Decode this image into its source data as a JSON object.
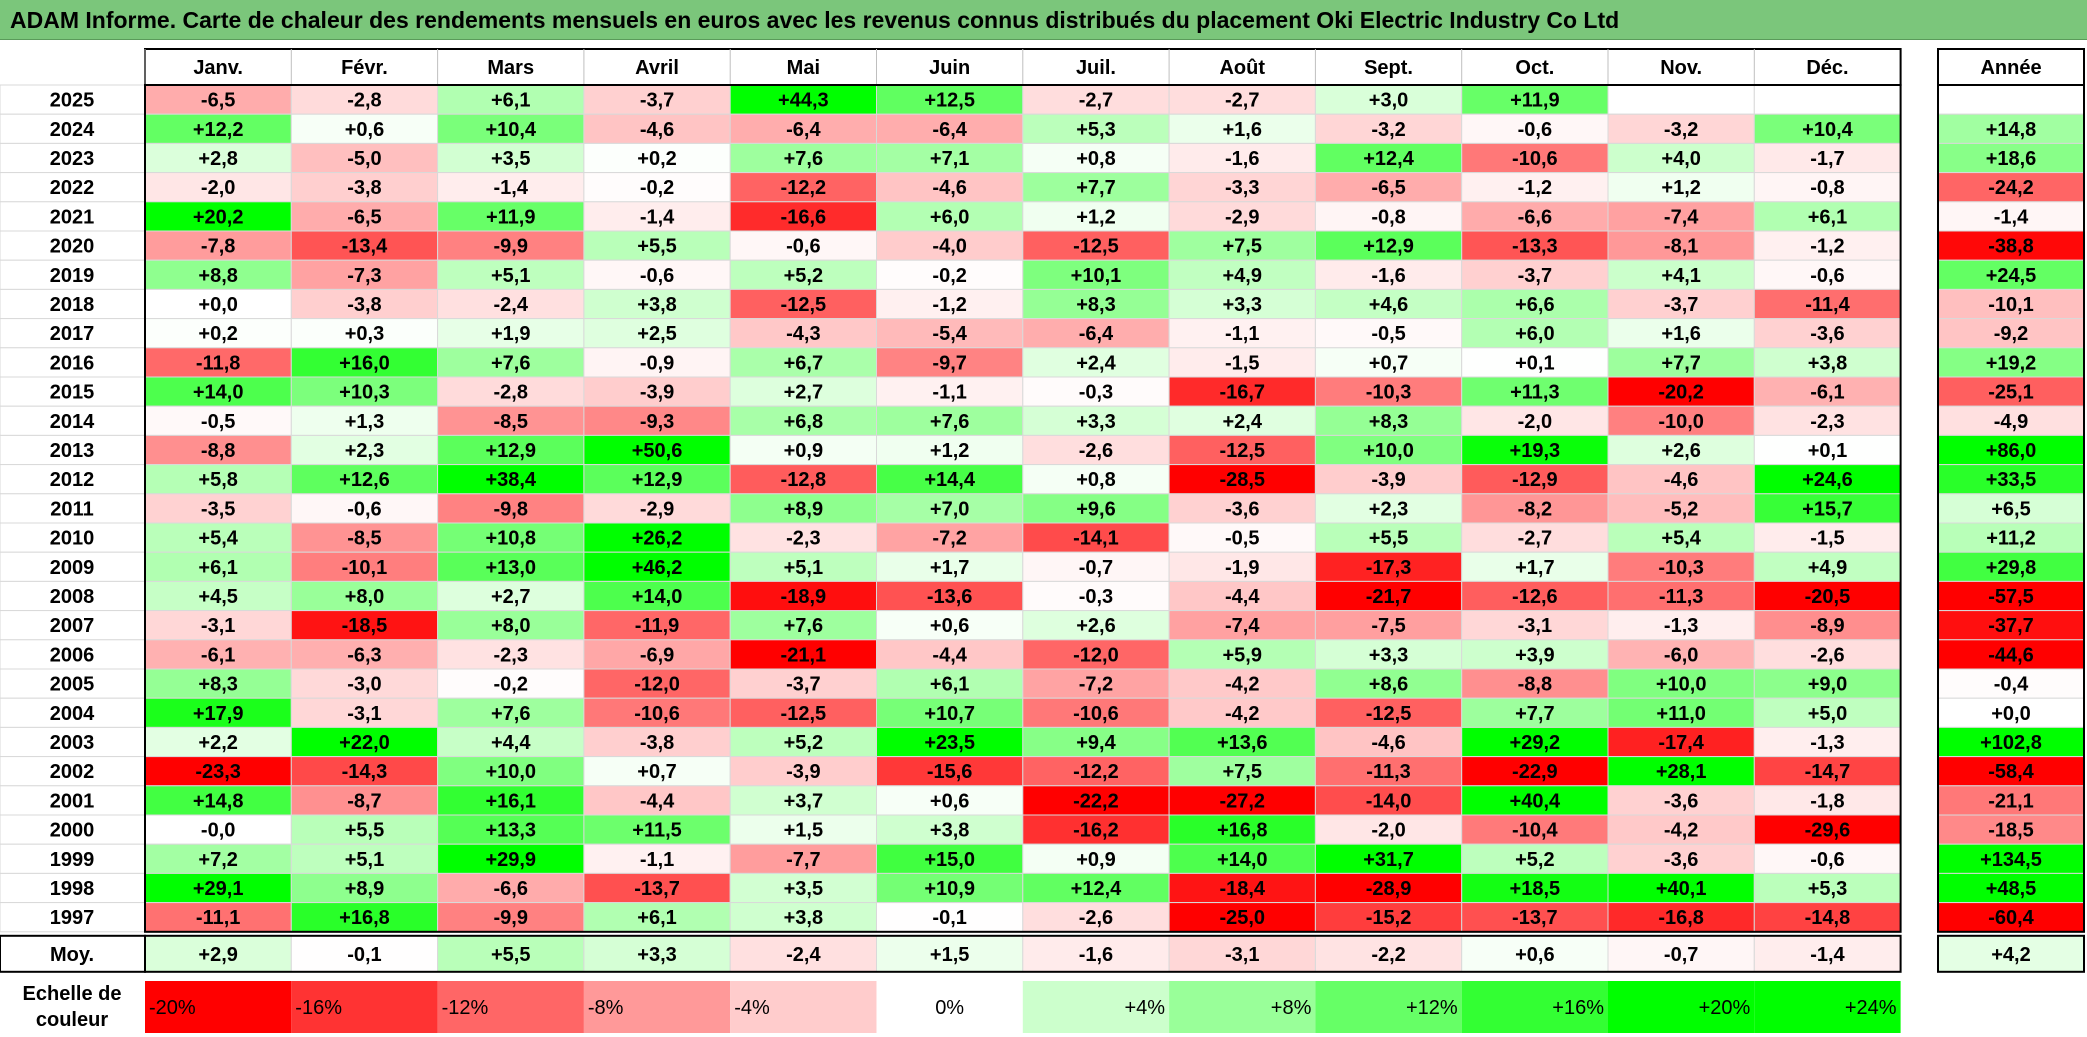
{
  "title": "ADAM Informe. Carte de chaleur des rendements mensuels en euros avec les revenus connus distribués du placement Oki Electric Industry Co Ltd",
  "chart_data": {
    "type": "heatmap",
    "title": "ADAM Informe. Carte de chaleur des rendements mensuels en euros avec les revenus connus distribués du placement Oki Electric Industry Co Ltd",
    "months": [
      "Janv.",
      "Févr.",
      "Mars",
      "Avril",
      "Mai",
      "Juin",
      "Juil.",
      "Août",
      "Sept.",
      "Oct.",
      "Nov.",
      "Déc."
    ],
    "annual_header": "Année",
    "average_label": "Moy.",
    "rows": [
      {
        "year": "2025",
        "values": [
          "-6,5",
          "-2,8",
          "+6,1",
          "-3,7",
          "+44,3",
          "+12,5",
          "-2,7",
          "-2,7",
          "+3,0",
          "+11,9",
          "",
          ""
        ],
        "annual": ""
      },
      {
        "year": "2024",
        "values": [
          "+12,2",
          "+0,6",
          "+10,4",
          "-4,6",
          "-6,4",
          "-6,4",
          "+5,3",
          "+1,6",
          "-3,2",
          "-0,6",
          "-3,2",
          "+10,4"
        ],
        "annual": "+14,8"
      },
      {
        "year": "2023",
        "values": [
          "+2,8",
          "-5,0",
          "+3,5",
          "+0,2",
          "+7,6",
          "+7,1",
          "+0,8",
          "-1,6",
          "+12,4",
          "-10,6",
          "+4,0",
          "-1,7"
        ],
        "annual": "+18,6"
      },
      {
        "year": "2022",
        "values": [
          "-2,0",
          "-3,8",
          "-1,4",
          "-0,2",
          "-12,2",
          "-4,6",
          "+7,7",
          "-3,3",
          "-6,5",
          "-1,2",
          "+1,2",
          "-0,8"
        ],
        "annual": "-24,2"
      },
      {
        "year": "2021",
        "values": [
          "+20,2",
          "-6,5",
          "+11,9",
          "-1,4",
          "-16,6",
          "+6,0",
          "+1,2",
          "-2,9",
          "-0,8",
          "-6,6",
          "-7,4",
          "+6,1"
        ],
        "annual": "-1,4"
      },
      {
        "year": "2020",
        "values": [
          "-7,8",
          "-13,4",
          "-9,9",
          "+5,5",
          "-0,6",
          "-4,0",
          "-12,5",
          "+7,5",
          "+12,9",
          "-13,3",
          "-8,1",
          "-1,2"
        ],
        "annual": "-38,8"
      },
      {
        "year": "2019",
        "values": [
          "+8,8",
          "-7,3",
          "+5,1",
          "-0,6",
          "+5,2",
          "-0,2",
          "+10,1",
          "+4,9",
          "-1,6",
          "-3,7",
          "+4,1",
          "-0,6"
        ],
        "annual": "+24,5"
      },
      {
        "year": "2018",
        "values": [
          "+0,0",
          "-3,8",
          "-2,4",
          "+3,8",
          "-12,5",
          "-1,2",
          "+8,3",
          "+3,3",
          "+4,6",
          "+6,6",
          "-3,7",
          "-11,4"
        ],
        "annual": "-10,1"
      },
      {
        "year": "2017",
        "values": [
          "+0,2",
          "+0,3",
          "+1,9",
          "+2,5",
          "-4,3",
          "-5,4",
          "-6,4",
          "-1,1",
          "-0,5",
          "+6,0",
          "+1,6",
          "-3,6"
        ],
        "annual": "-9,2"
      },
      {
        "year": "2016",
        "values": [
          "-11,8",
          "+16,0",
          "+7,6",
          "-0,9",
          "+6,7",
          "-9,7",
          "+2,4",
          "-1,5",
          "+0,7",
          "+0,1",
          "+7,7",
          "+3,8"
        ],
        "annual": "+19,2"
      },
      {
        "year": "2015",
        "values": [
          "+14,0",
          "+10,3",
          "-2,8",
          "-3,9",
          "+2,7",
          "-1,1",
          "-0,3",
          "-16,7",
          "-10,3",
          "+11,3",
          "-20,2",
          "-6,1"
        ],
        "annual": "-25,1"
      },
      {
        "year": "2014",
        "values": [
          "-0,5",
          "+1,3",
          "-8,5",
          "-9,3",
          "+6,8",
          "+7,6",
          "+3,3",
          "+2,4",
          "+8,3",
          "-2,0",
          "-10,0",
          "-2,3"
        ],
        "annual": "-4,9"
      },
      {
        "year": "2013",
        "values": [
          "-8,8",
          "+2,3",
          "+12,9",
          "+50,6",
          "+0,9",
          "+1,2",
          "-2,6",
          "-12,5",
          "+10,0",
          "+19,3",
          "+2,6",
          "+0,1"
        ],
        "annual": "+86,0"
      },
      {
        "year": "2012",
        "values": [
          "+5,8",
          "+12,6",
          "+38,4",
          "+12,9",
          "-12,8",
          "+14,4",
          "+0,8",
          "-28,5",
          "-3,9",
          "-12,9",
          "-4,6",
          "+24,6"
        ],
        "annual": "+33,5"
      },
      {
        "year": "2011",
        "values": [
          "-3,5",
          "-0,6",
          "-9,8",
          "-2,9",
          "+8,9",
          "+7,0",
          "+9,6",
          "-3,6",
          "+2,3",
          "-8,2",
          "-5,2",
          "+15,7"
        ],
        "annual": "+6,5"
      },
      {
        "year": "2010",
        "values": [
          "+5,4",
          "-8,5",
          "+10,8",
          "+26,2",
          "-2,3",
          "-7,2",
          "-14,1",
          "-0,5",
          "+5,5",
          "-2,7",
          "+5,4",
          "-1,5"
        ],
        "annual": "+11,2"
      },
      {
        "year": "2009",
        "values": [
          "+6,1",
          "-10,1",
          "+13,0",
          "+46,2",
          "+5,1",
          "+1,7",
          "-0,7",
          "-1,9",
          "-17,3",
          "+1,7",
          "-10,3",
          "+4,9"
        ],
        "annual": "+29,8"
      },
      {
        "year": "2008",
        "values": [
          "+4,5",
          "+8,0",
          "+2,7",
          "+14,0",
          "-18,9",
          "-13,6",
          "-0,3",
          "-4,4",
          "-21,7",
          "-12,6",
          "-11,3",
          "-20,5"
        ],
        "annual": "-57,5"
      },
      {
        "year": "2007",
        "values": [
          "-3,1",
          "-18,5",
          "+8,0",
          "-11,9",
          "+7,6",
          "+0,6",
          "+2,6",
          "-7,4",
          "-7,5",
          "-3,1",
          "-1,3",
          "-8,9"
        ],
        "annual": "-37,7"
      },
      {
        "year": "2006",
        "values": [
          "-6,1",
          "-6,3",
          "-2,3",
          "-6,9",
          "-21,1",
          "-4,4",
          "-12,0",
          "+5,9",
          "+3,3",
          "+3,9",
          "-6,0",
          "-2,6"
        ],
        "annual": "-44,6"
      },
      {
        "year": "2005",
        "values": [
          "+8,3",
          "-3,0",
          "-0,2",
          "-12,0",
          "-3,7",
          "+6,1",
          "-7,2",
          "-4,2",
          "+8,6",
          "-8,8",
          "+10,0",
          "+9,0"
        ],
        "annual": "-0,4"
      },
      {
        "year": "2004",
        "values": [
          "+17,9",
          "-3,1",
          "+7,6",
          "-10,6",
          "-12,5",
          "+10,7",
          "-10,6",
          "-4,2",
          "-12,5",
          "+7,7",
          "+11,0",
          "+5,0"
        ],
        "annual": "+0,0"
      },
      {
        "year": "2003",
        "values": [
          "+2,2",
          "+22,0",
          "+4,4",
          "-3,8",
          "+5,2",
          "+23,5",
          "+9,4",
          "+13,6",
          "-4,6",
          "+29,2",
          "-17,4",
          "-1,3"
        ],
        "annual": "+102,8"
      },
      {
        "year": "2002",
        "values": [
          "-23,3",
          "-14,3",
          "+10,0",
          "+0,7",
          "-3,9",
          "-15,6",
          "-12,2",
          "+7,5",
          "-11,3",
          "-22,9",
          "+28,1",
          "-14,7"
        ],
        "annual": "-58,4"
      },
      {
        "year": "2001",
        "values": [
          "+14,8",
          "-8,7",
          "+16,1",
          "-4,4",
          "+3,7",
          "+0,6",
          "-22,2",
          "-27,2",
          "-14,0",
          "+40,4",
          "-3,6",
          "-1,8"
        ],
        "annual": "-21,1"
      },
      {
        "year": "2000",
        "values": [
          "-0,0",
          "+5,5",
          "+13,3",
          "+11,5",
          "+1,5",
          "+3,8",
          "-16,2",
          "+16,8",
          "-2,0",
          "-10,4",
          "-4,2",
          "-29,6"
        ],
        "annual": "-18,5"
      },
      {
        "year": "1999",
        "values": [
          "+7,2",
          "+5,1",
          "+29,9",
          "-1,1",
          "-7,7",
          "+15,0",
          "+0,9",
          "+14,0",
          "+31,7",
          "+5,2",
          "-3,6",
          "-0,6"
        ],
        "annual": "+134,5"
      },
      {
        "year": "1998",
        "values": [
          "+29,1",
          "+8,9",
          "-6,6",
          "-13,7",
          "+3,5",
          "+10,9",
          "+12,4",
          "-18,4",
          "-28,9",
          "+18,5",
          "+40,1",
          "+5,3"
        ],
        "annual": "+48,5"
      },
      {
        "year": "1997",
        "values": [
          "-11,1",
          "+16,8",
          "-9,9",
          "+6,1",
          "+3,8",
          "-0,1",
          "-2,6",
          "-25,0",
          "-15,2",
          "-13,7",
          "-16,8",
          "-14,8"
        ],
        "annual": "-60,4"
      }
    ],
    "averages": [
      "+2,9",
      "-0,1",
      "+5,5",
      "+3,3",
      "-2,4",
      "+1,5",
      "-1,6",
      "-3,1",
      "-2,2",
      "+0,6",
      "-0,7",
      "-1,4"
    ],
    "average_annual": "+4,2",
    "scale_label": [
      "Echelle de",
      "couleur"
    ],
    "scale": [
      "-20%",
      "-16%",
      "-12%",
      "-8%",
      "-4%",
      "0%",
      "+4%",
      "+8%",
      "+12%",
      "+16%",
      "+20%",
      "+24%"
    ],
    "scale_values": [
      -20,
      -16,
      -12,
      -8,
      -4,
      0,
      4,
      8,
      12,
      16,
      20,
      24
    ],
    "colors": {
      "negative_max": "#ff0000",
      "neutral": "#ffffff",
      "positive_max": "#00ff00",
      "title_bar": "#7bc67b"
    }
  }
}
